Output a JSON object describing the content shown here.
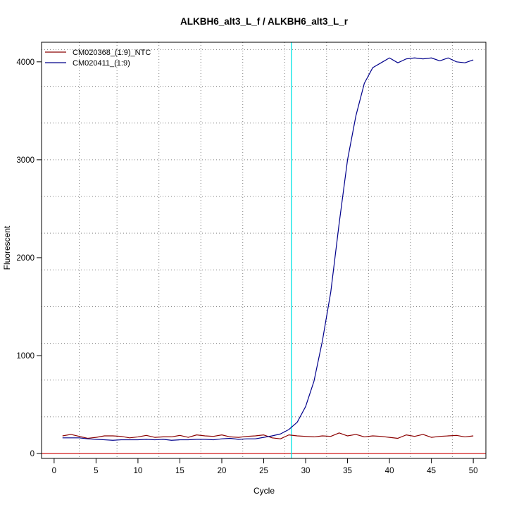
{
  "chart_data": {
    "type": "line",
    "title": "ALKBH6_alt3_L_f / ALKBH6_alt3_L_r",
    "xlabel": "Cycle",
    "ylabel": "Fluorescent",
    "xlim": [
      -1.5,
      51.5
    ],
    "ylim": [
      -50,
      4200
    ],
    "x_ticks": [
      0,
      5,
      10,
      15,
      20,
      25,
      30,
      35,
      40,
      45,
      50
    ],
    "y_ticks": [
      0,
      1000,
      2000,
      3000,
      4000
    ],
    "x_grid": [
      3,
      7.5,
      12.5,
      17.5,
      22.5,
      27.5,
      32.5,
      37.5,
      42.5,
      47.5
    ],
    "y_grid": [
      0,
      375,
      750,
      1125,
      1500,
      1875,
      2250,
      2625,
      3000,
      3375,
      3750,
      4125
    ],
    "grid": true,
    "legend_position": "top-left",
    "threshold_cycle": 28.3,
    "threshold_color": "#00e5e5",
    "baseline_color": "#cc0000",
    "x": [
      1,
      2,
      3,
      4,
      5,
      6,
      7,
      8,
      9,
      10,
      11,
      12,
      13,
      14,
      15,
      16,
      17,
      18,
      19,
      20,
      21,
      22,
      23,
      24,
      25,
      26,
      27,
      28,
      29,
      30,
      31,
      32,
      33,
      34,
      35,
      36,
      37,
      38,
      39,
      40,
      41,
      42,
      43,
      44,
      45,
      46,
      47,
      48,
      49,
      50
    ],
    "series": [
      {
        "name": "CM020368_(1:9)_NTC",
        "color": "#8b0000",
        "values": [
          180,
          195,
          175,
          155,
          165,
          180,
          180,
          175,
          160,
          170,
          185,
          165,
          170,
          170,
          185,
          165,
          190,
          180,
          175,
          190,
          170,
          165,
          175,
          180,
          190,
          160,
          150,
          190,
          180,
          175,
          170,
          180,
          175,
          210,
          180,
          195,
          170,
          180,
          175,
          165,
          155,
          190,
          175,
          195,
          165,
          175,
          180,
          185,
          170,
          180
        ]
      },
      {
        "name": "CM020411_(1:9)",
        "color": "#00008b",
        "values": [
          160,
          160,
          160,
          150,
          145,
          140,
          135,
          140,
          140,
          140,
          145,
          140,
          145,
          135,
          140,
          140,
          145,
          145,
          140,
          150,
          155,
          145,
          150,
          150,
          165,
          180,
          200,
          245,
          320,
          480,
          740,
          1150,
          1650,
          2350,
          3000,
          3450,
          3780,
          3940,
          3990,
          4040,
          3990,
          4030,
          4040,
          4030,
          4040,
          4010,
          4040,
          4000,
          3990,
          4020
        ]
      }
    ]
  }
}
